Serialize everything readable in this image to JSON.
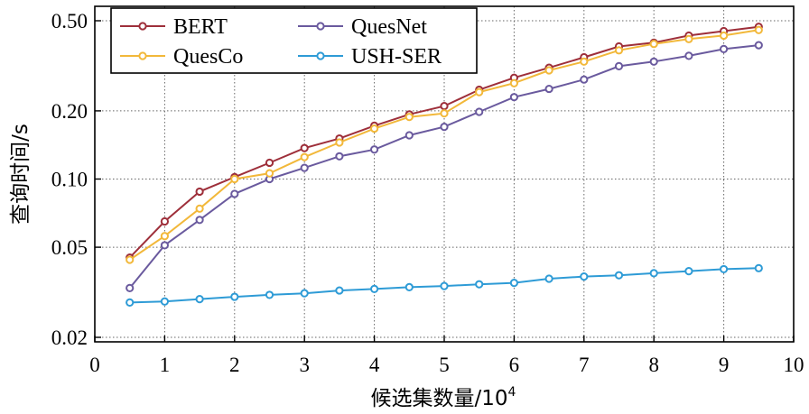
{
  "chart_data": {
    "type": "line",
    "xlabel": "候选集数量/10",
    "xlabel_sup": "4",
    "ylabel": "查询时间/s",
    "xlim": [
      0,
      10
    ],
    "ylim": [
      0.02,
      0.5
    ],
    "y_scale": "log",
    "x_ticks": [
      "0",
      "1",
      "2",
      "3",
      "4",
      "5",
      "6",
      "7",
      "8",
      "9",
      "10"
    ],
    "y_ticks": [
      {
        "value": 0.5,
        "label": "0.50"
      },
      {
        "value": 0.2,
        "label": "0.20"
      },
      {
        "value": 0.1,
        "label": "0.10"
      },
      {
        "value": 0.05,
        "label": "0.05"
      },
      {
        "value": 0.02,
        "label": "0.02"
      }
    ],
    "grid": "dotted",
    "legend_position": "top-left",
    "x": [
      0.5,
      1,
      1.5,
      2,
      2.5,
      3,
      3.5,
      4,
      4.5,
      5,
      5.5,
      6,
      6.5,
      7,
      7.5,
      8,
      8.5,
      9,
      9.5
    ],
    "series": [
      {
        "name": "BERT",
        "color": "#9e2f3a",
        "values": [
          0.045,
          0.065,
          0.088,
          0.102,
          0.118,
          0.137,
          0.151,
          0.172,
          0.193,
          0.21,
          0.248,
          0.28,
          0.31,
          0.345,
          0.385,
          0.4,
          0.43,
          0.45,
          0.47
        ]
      },
      {
        "name": "QuesNet",
        "color": "#6a5a9e",
        "values": [
          0.033,
          0.051,
          0.066,
          0.086,
          0.1,
          0.112,
          0.126,
          0.135,
          0.156,
          0.17,
          0.198,
          0.23,
          0.25,
          0.275,
          0.315,
          0.33,
          0.35,
          0.375,
          0.39
        ]
      },
      {
        "name": "QuesCo",
        "color": "#f2b83a",
        "values": [
          0.044,
          0.056,
          0.074,
          0.1,
          0.106,
          0.125,
          0.145,
          0.167,
          0.188,
          0.195,
          0.242,
          0.265,
          0.302,
          0.33,
          0.37,
          0.395,
          0.415,
          0.43,
          0.455
        ]
      },
      {
        "name": "USH-SER",
        "color": "#2e9bd6",
        "values": [
          0.0285,
          0.0288,
          0.0295,
          0.0302,
          0.0308,
          0.0313,
          0.0322,
          0.0327,
          0.0333,
          0.0337,
          0.0343,
          0.0348,
          0.0363,
          0.0371,
          0.0376,
          0.0384,
          0.0392,
          0.04,
          0.0404
        ]
      }
    ]
  }
}
